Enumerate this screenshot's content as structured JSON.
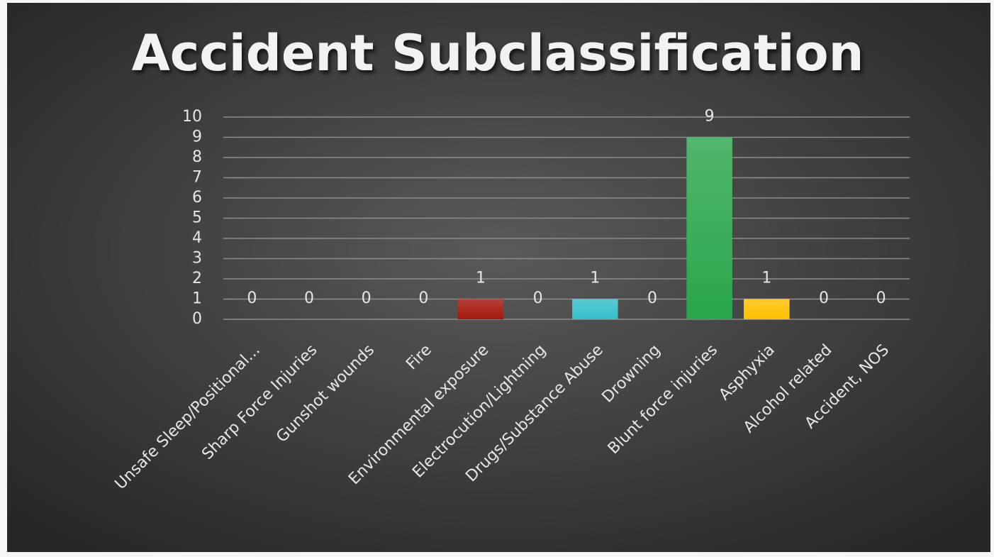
{
  "chart_data": {
    "type": "bar",
    "title": "Accident Subclassification",
    "categories": [
      "Unsafe Sleep/Positional...",
      "Sharp Force Injuries",
      "Gunshot wounds",
      "Fire",
      "Environmental exposure",
      "Electrocution/Lightning",
      "Drugs/Substance Abuse",
      "Drowning",
      "Blunt force injuries",
      "Asphyxia",
      "Alcohol related",
      "Accident, NOS"
    ],
    "values": [
      0,
      0,
      0,
      0,
      1,
      0,
      1,
      0,
      9,
      1,
      0,
      0
    ],
    "colors": [
      null,
      null,
      null,
      null,
      "#a3170c",
      null,
      "#35bfca",
      null,
      "#2aa64b",
      "#ffc000",
      null,
      null
    ],
    "ylim": [
      0,
      10
    ],
    "yticks": [
      0,
      1,
      2,
      3,
      4,
      5,
      6,
      7,
      8,
      9,
      10
    ],
    "grid": true
  }
}
